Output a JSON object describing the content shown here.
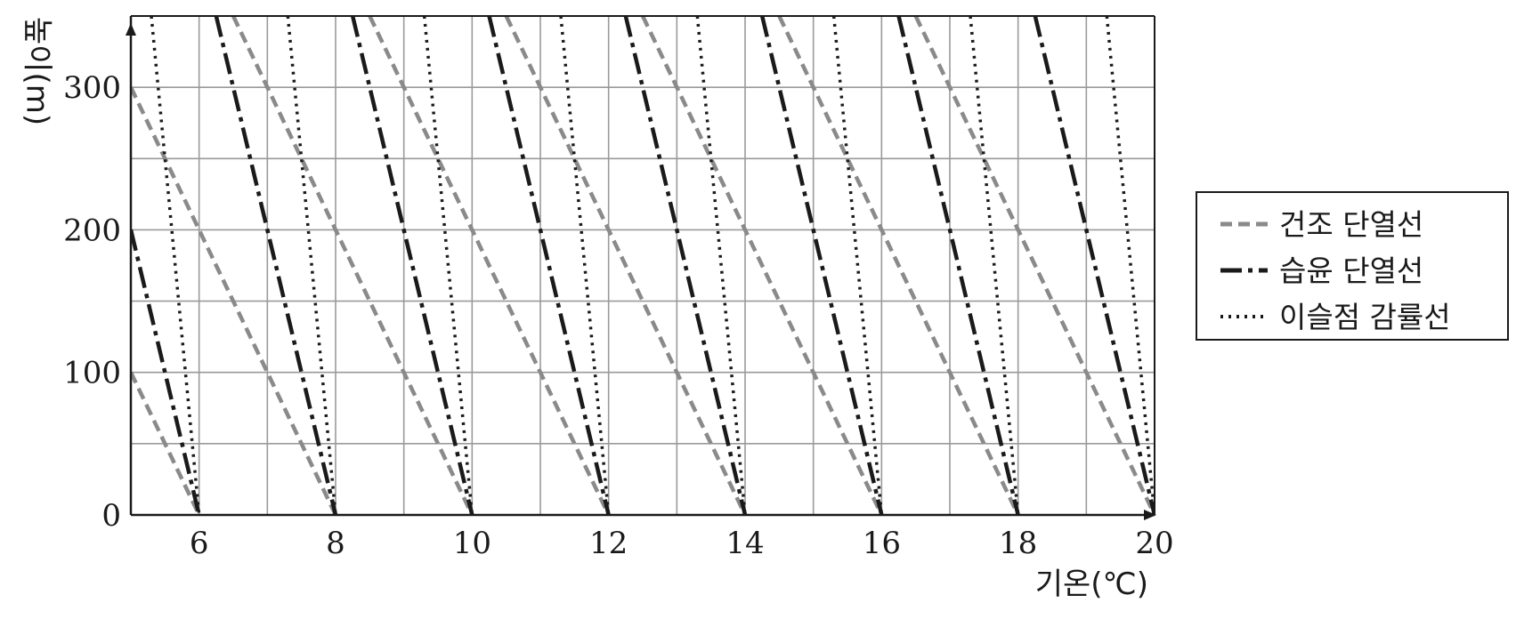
{
  "chart_data": {
    "type": "line",
    "xlabel": "기온(℃)",
    "ylabel": "높이(m)",
    "xlim": [
      5,
      20
    ],
    "ylim": [
      0,
      350
    ],
    "x_ticks": [
      6,
      8,
      10,
      12,
      14,
      16,
      18,
      20
    ],
    "y_ticks": [
      0,
      100,
      200,
      300
    ],
    "grid": true,
    "legend_position": "right",
    "series": [
      {
        "name": "건조 단열선",
        "style": "dashed",
        "color": "#8a8a8a",
        "lapse_rate_c_per_100m": 1.0,
        "base_temperatures": [
          6,
          8,
          10,
          12,
          14,
          16,
          18,
          20
        ]
      },
      {
        "name": "습윤 단열선",
        "style": "dash-dot",
        "color": "#1a1a1a",
        "lapse_rate_c_per_100m": 0.5,
        "base_temperatures": [
          6,
          8,
          10,
          12,
          14,
          16,
          18,
          20
        ]
      },
      {
        "name": "이슬점 감률선",
        "style": "dotted",
        "color": "#1a1a1a",
        "lapse_rate_c_per_100m": 0.2,
        "base_temperatures": [
          6,
          8,
          10,
          12,
          14,
          16,
          18,
          20
        ]
      }
    ]
  }
}
